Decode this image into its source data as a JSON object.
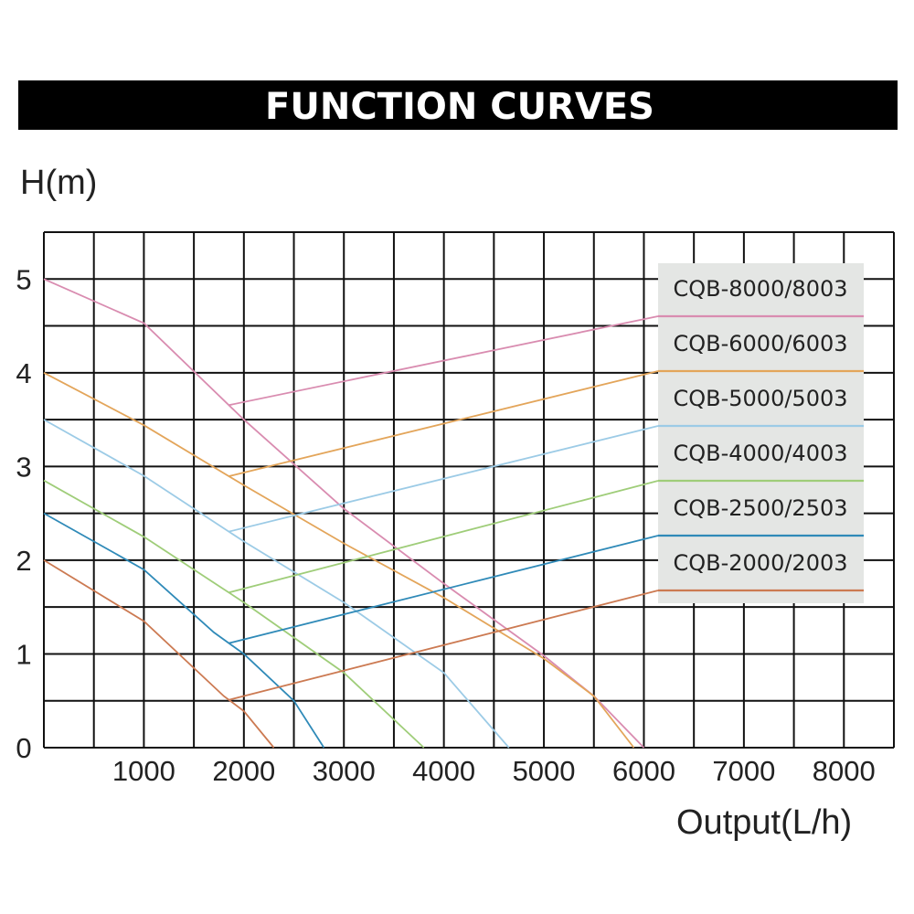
{
  "title": "FUNCTION CURVES",
  "chart_data": {
    "type": "line",
    "ylabel": "H(m)",
    "xlabel": "Output(L/h)",
    "xlim": [
      0,
      8500
    ],
    "ylim": [
      0,
      5.5
    ],
    "x_ticks": [
      1000,
      2000,
      3000,
      4000,
      5000,
      6000,
      7000,
      8000
    ],
    "y_ticks": [
      0,
      1,
      2,
      3,
      4,
      5
    ],
    "grid": true,
    "legend_position": "top-right",
    "series": [
      {
        "name": "CQB-8000/8003",
        "color": "#d98cb0",
        "values": [
          [
            0,
            5.0
          ],
          [
            1000,
            4.53
          ],
          [
            2000,
            3.5
          ],
          [
            3000,
            2.55
          ],
          [
            4000,
            1.75
          ],
          [
            5000,
            0.98
          ],
          [
            5500,
            0.55
          ],
          [
            6000,
            0.0
          ]
        ]
      },
      {
        "name": "CQB-6000/6003",
        "color": "#e3a55a",
        "values": [
          [
            0,
            4.0
          ],
          [
            1000,
            3.44
          ],
          [
            2000,
            2.8
          ],
          [
            3000,
            2.18
          ],
          [
            4000,
            1.6
          ],
          [
            5000,
            0.95
          ],
          [
            5500,
            0.55
          ],
          [
            5900,
            0.0
          ]
        ]
      },
      {
        "name": "CQB-5000/5003",
        "color": "#9ccbe6",
        "values": [
          [
            0,
            3.5
          ],
          [
            1000,
            2.9
          ],
          [
            2000,
            2.2
          ],
          [
            3000,
            1.55
          ],
          [
            4000,
            0.8
          ],
          [
            4650,
            0.0
          ]
        ]
      },
      {
        "name": "CQB-4000/4003",
        "color": "#9fcd79",
        "values": [
          [
            0,
            2.85
          ],
          [
            1000,
            2.25
          ],
          [
            2000,
            1.55
          ],
          [
            3000,
            0.8
          ],
          [
            3800,
            0.0
          ]
        ]
      },
      {
        "name": "CQB-2500/2503",
        "color": "#2f8ab8",
        "values": [
          [
            0,
            2.5
          ],
          [
            1000,
            1.9
          ],
          [
            1700,
            1.23
          ],
          [
            2000,
            1.0
          ],
          [
            2500,
            0.5
          ],
          [
            2800,
            0.0
          ]
        ]
      },
      {
        "name": "CQB-2000/2003",
        "color": "#cc7a52",
        "values": [
          [
            0,
            2.0
          ],
          [
            1000,
            1.35
          ],
          [
            1800,
            0.55
          ],
          [
            2000,
            0.39
          ],
          [
            2300,
            0.0
          ]
        ]
      }
    ]
  }
}
